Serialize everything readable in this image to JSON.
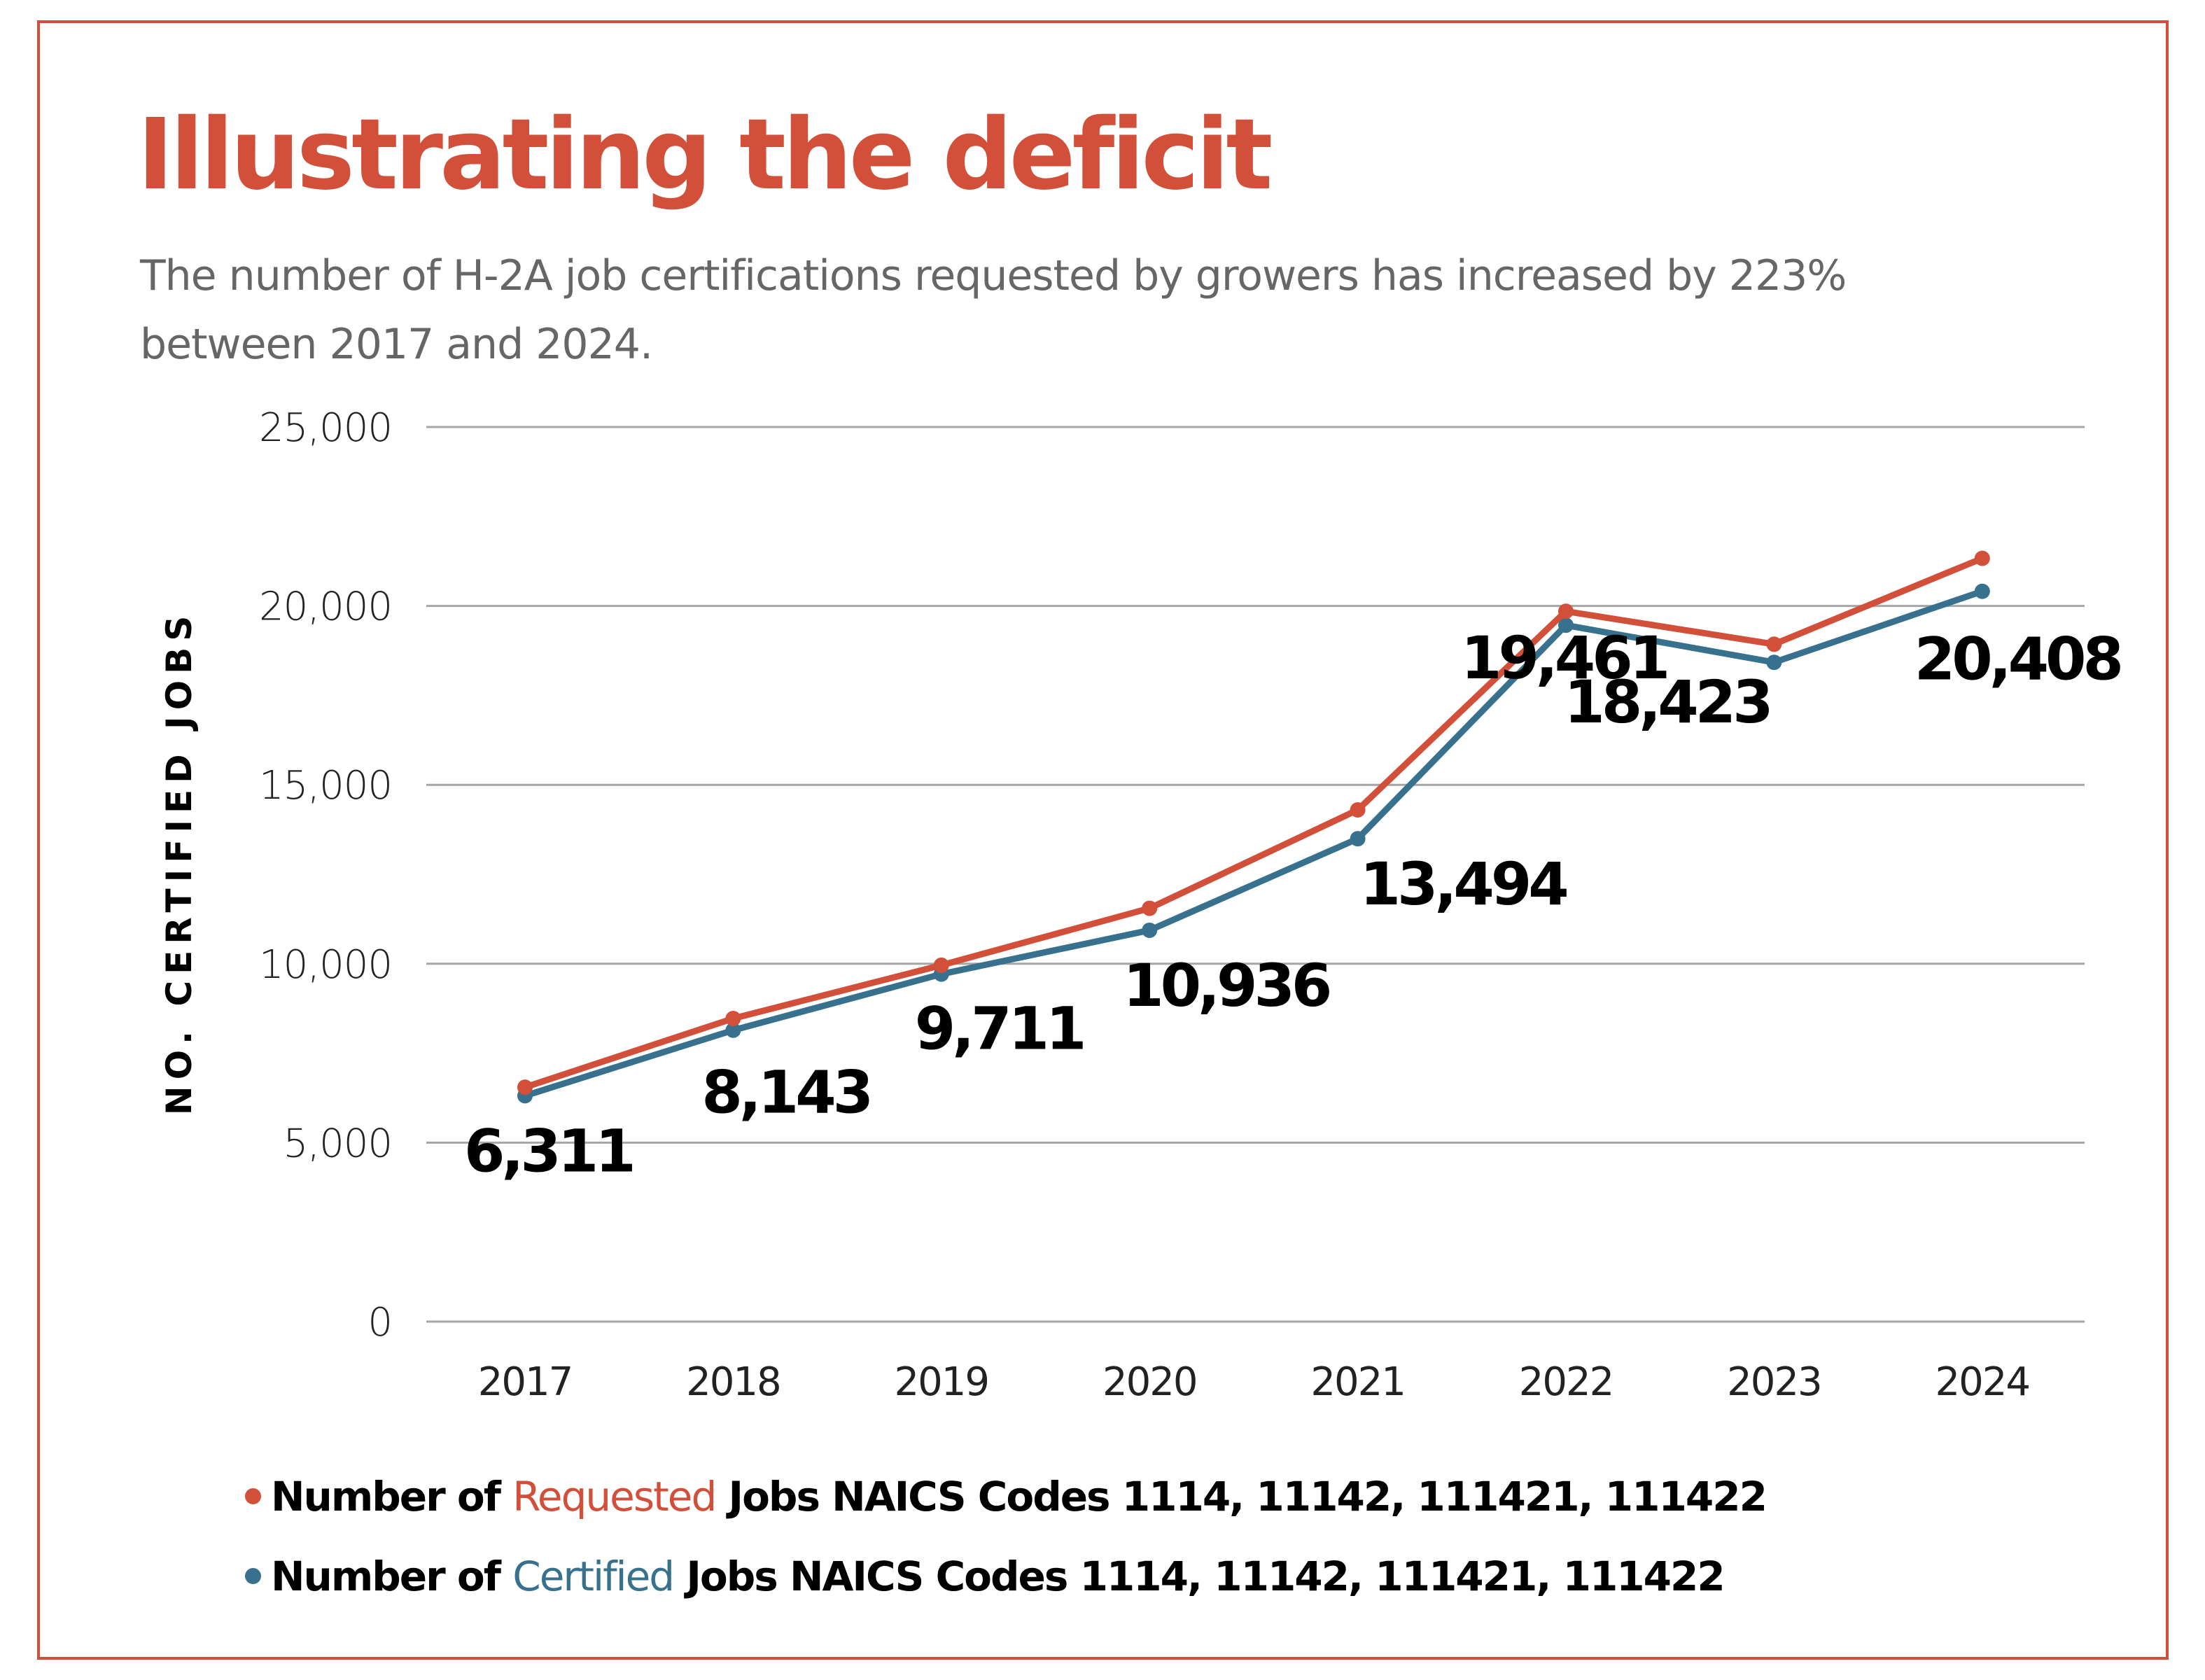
{
  "header": {
    "title": "Illustrating the deficit",
    "subtitle": "The number of H-2A job certifications requested by growers has increased by 223% between 2017 and 2024."
  },
  "colors": {
    "accent": "#d24f39",
    "requested": "#d24f39",
    "certified": "#37718e",
    "grid": "#a6a6a6",
    "subtitle": "#666666",
    "text": "#000000"
  },
  "legend": {
    "items": [
      {
        "prefix": "Number of ",
        "key": "Requested",
        "suffix": " Jobs NAICS Codes 1114, 11142, 111421, 111422",
        "series": "requested"
      },
      {
        "prefix": "Number of ",
        "key": "Certified",
        "suffix": " Jobs NAICS Codes 1114, 11142, 111421, 111422",
        "series": "certified"
      }
    ]
  },
  "chart_data": {
    "type": "line",
    "title": "Illustrating the deficit",
    "subtitle": "The number of H-2A job certifications requested by growers has increased by 223% between 2017 and 2024.",
    "xlabel": "",
    "ylabel": "NO. CERTIFIED JOBS",
    "x": [
      "2017",
      "2018",
      "2019",
      "2020",
      "2021",
      "2022",
      "2023",
      "2024"
    ],
    "ylim": [
      0,
      25000
    ],
    "yticks": [
      0,
      5000,
      10000,
      15000,
      20000,
      25000
    ],
    "ytick_labels": [
      "0",
      "5,000",
      "10,000",
      "15,000",
      "20,000",
      "25,000"
    ],
    "grid": true,
    "legend_position": "bottom-left",
    "series": [
      {
        "name": "Number of Requested Jobs NAICS Codes 1114, 11142, 111421, 111422",
        "key": "requested",
        "color": "#d24f39",
        "values": [
          6550,
          8470,
          9960,
          11550,
          14300,
          19850,
          18930,
          21330
        ],
        "data_labels": null
      },
      {
        "name": "Number of Certified Jobs NAICS Codes 1114, 11142, 111421, 111422",
        "key": "certified",
        "color": "#37718e",
        "values": [
          6311,
          8143,
          9711,
          10936,
          13494,
          19461,
          18423,
          20408
        ],
        "data_labels": [
          "6,311",
          "8,143",
          "9,711",
          "10,936",
          "13,494",
          "19,461",
          "18,423",
          "20,408"
        ]
      }
    ]
  }
}
